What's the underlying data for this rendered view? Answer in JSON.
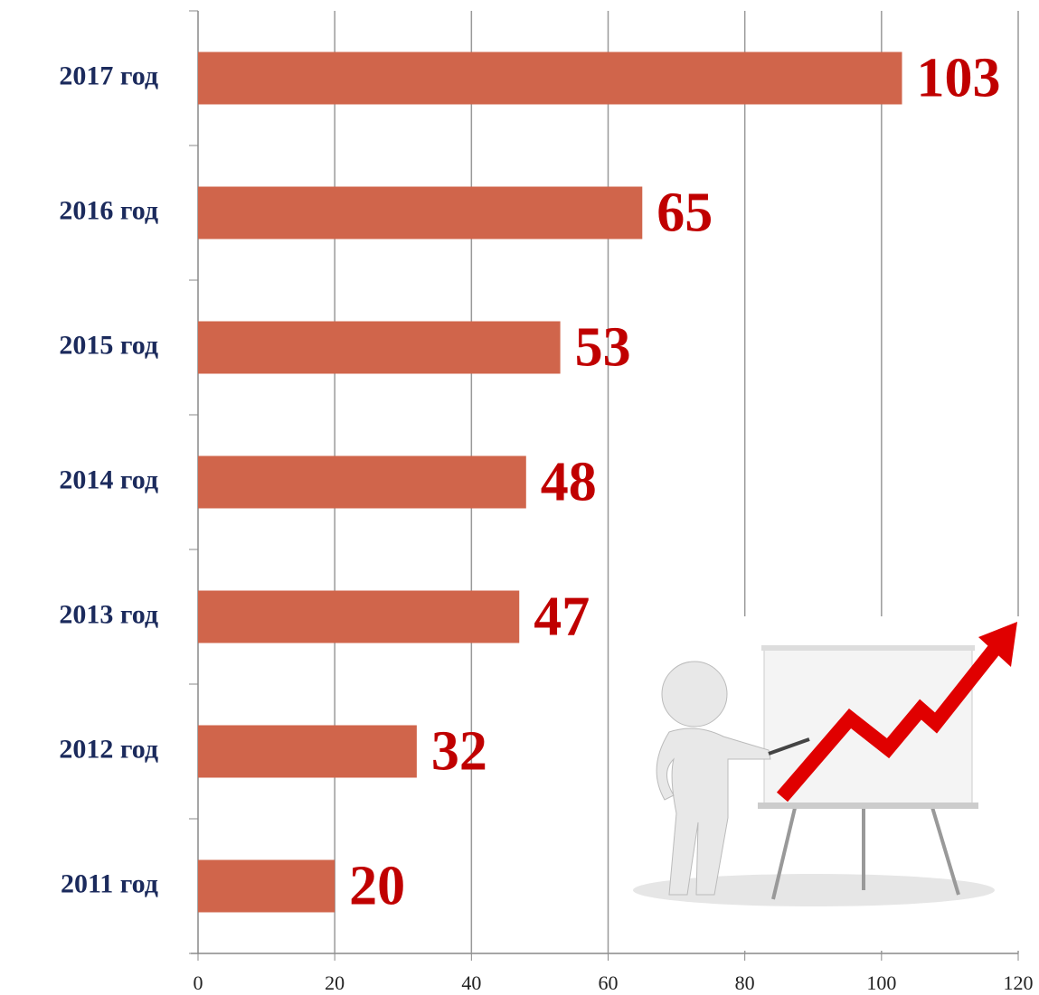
{
  "chart_data": {
    "type": "bar",
    "orientation": "horizontal",
    "categories": [
      "2011 год",
      "2012 год",
      "2013 год",
      "2014 год",
      "2015 год",
      "2016 год",
      "2017 год"
    ],
    "values": [
      20,
      32,
      47,
      48,
      53,
      65,
      103
    ],
    "color": "#d0654b",
    "label_color": "#c00000",
    "xlim": [
      0,
      120
    ],
    "xticks": [
      0,
      20,
      40,
      60,
      80,
      100,
      120
    ],
    "grid": true
  }
}
